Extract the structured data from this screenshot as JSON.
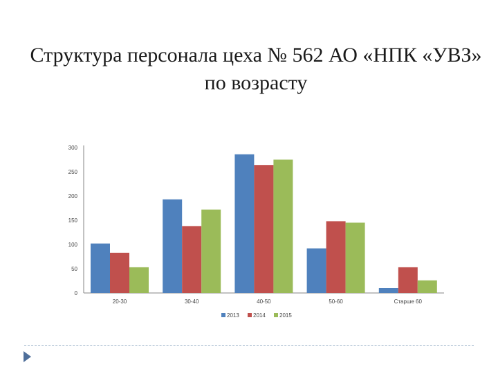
{
  "chart_data": {
    "type": "bar",
    "title": "Структура персонала цеха № 562 АО «НПК «УВЗ» по возрасту",
    "categories": [
      "20-30",
      "30-40",
      "40-50",
      "50-60",
      "Старше 60"
    ],
    "series": [
      {
        "name": "2013",
        "color": "#4f81bd",
        "values": [
          102,
          193,
          286,
          92,
          10
        ]
      },
      {
        "name": "2014",
        "color": "#c0504d",
        "values": [
          83,
          138,
          264,
          148,
          53
        ]
      },
      {
        "name": "2015",
        "color": "#9bbb59",
        "values": [
          53,
          172,
          275,
          145,
          26
        ]
      }
    ],
    "y_ticks": [
      "0",
      "50",
      "100",
      "150",
      "200",
      "250",
      "300"
    ],
    "ylim": [
      0,
      300
    ],
    "legend_position": "bottom",
    "grid": false
  }
}
